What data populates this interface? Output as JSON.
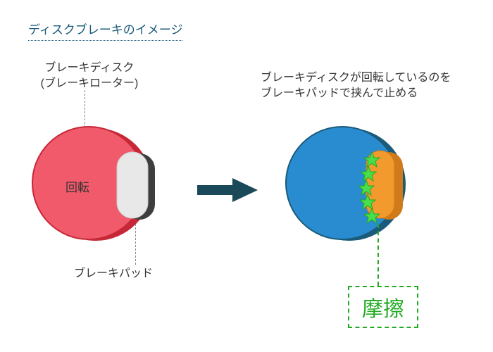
{
  "title": "ディスクブレーキのイメージ",
  "labels": {
    "disc": "ブレーキディスク\n(ブレーキローター)",
    "pad": "ブレーキパッド",
    "rotation": "回転",
    "description": "ブレーキディスクが回転しているのを\nブレーキパッドで挟んで止める",
    "friction": "摩擦"
  },
  "left_diagram": {
    "type": "infographic",
    "disc_back_color": "#c62838",
    "disc_front_color": "#f05a6a",
    "disc_face_color": "#fbc2c8",
    "pad_back_color": "#3e3e3e",
    "pad_front_color": "#e8e8e8",
    "disc_radius": 80,
    "pad_width": 44,
    "pad_height": 94,
    "pad_rx": 22,
    "border_color": "#c62838",
    "border_width": 2
  },
  "right_diagram": {
    "type": "infographic",
    "disc_back_color": "#1a5a7a",
    "disc_front_color": "#2a8cd0",
    "pad_back_color": "#d07a1a",
    "pad_front_color": "#f29a2e",
    "star_color": "#4ade4a",
    "disc_radius": 80,
    "pad_width": 44,
    "pad_height": 96,
    "pad_rx": 22,
    "star_count": 5,
    "star_size": 12
  },
  "arrow": {
    "color": "#1a4a5a",
    "length": 60,
    "thickness": 14,
    "head_w": 26,
    "head_h": 34
  },
  "colors": {
    "title": "#1a5a7a",
    "text": "#333333",
    "leader": "#888888",
    "friction_green": "#22aa22",
    "background": "#ffffff"
  },
  "typography": {
    "title_size": 17,
    "label_size": 16,
    "friction_size": 30
  }
}
